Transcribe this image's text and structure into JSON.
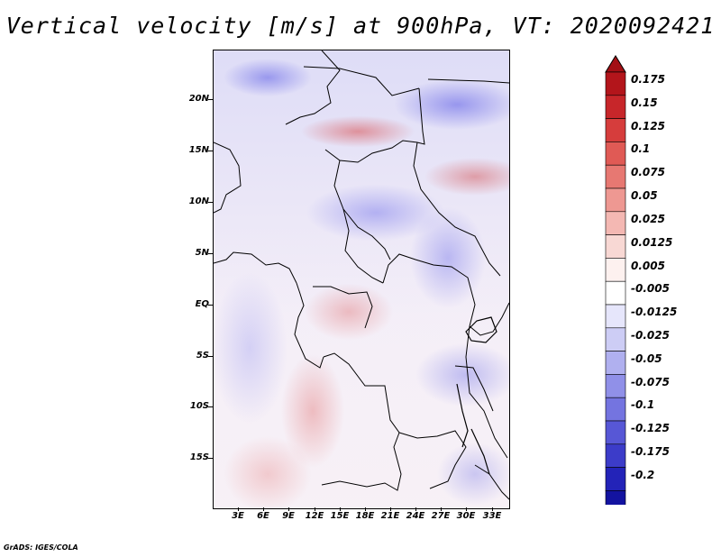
{
  "title": "Vertical velocity [m/s] at 900hPa, VT: 2020092421",
  "lat_labels": [
    "20N",
    "15N",
    "10N",
    "5N",
    "EQ",
    "5S",
    "10S",
    "15S"
  ],
  "lon_labels": [
    "3E",
    "6E",
    "9E",
    "12E",
    "15E",
    "18E",
    "21E",
    "24E",
    "27E",
    "30E",
    "33E"
  ],
  "colorbar": {
    "labels": [
      "0.175",
      "0.15",
      "0.125",
      "0.1",
      "0.075",
      "0.05",
      "0.025",
      "0.0125",
      "0.005",
      "-0.005",
      "-0.0125",
      "-0.025",
      "-0.05",
      "-0.075",
      "-0.1",
      "-0.125",
      "-0.175",
      "-0.2"
    ],
    "colors": [
      "#b3151b",
      "#c7262a",
      "#d63d3c",
      "#e05a55",
      "#e77872",
      "#ee9892",
      "#f4b8b3",
      "#f8d8d4",
      "#fdf1ef",
      "#ffffff",
      "#e6e6fb",
      "#cdcdf5",
      "#b0b0ef",
      "#9090e8",
      "#7474e0",
      "#5757d6",
      "#3c3cc9",
      "#2323b8",
      "#1313a0"
    ],
    "top_cap": "#a31015",
    "bottom_cap": "#12129a"
  },
  "credit": "GrADS: IGES/COLA"
}
